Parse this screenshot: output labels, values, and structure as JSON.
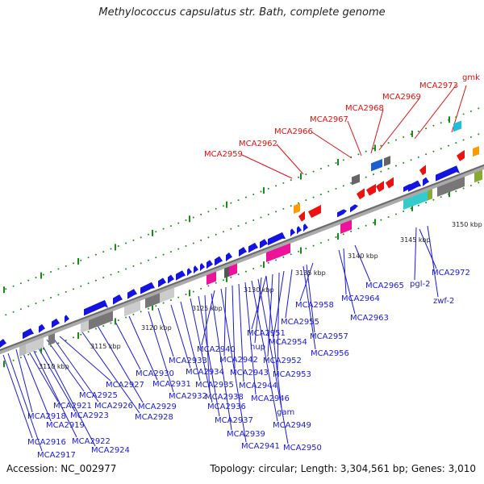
{
  "title": "Methylococcus capsulatus str. Bath, complete genome",
  "footer": {
    "accession": "Accession: NC_002977",
    "summary": "Topology: circular; Length: 3,304,561 bp; Genes: 3,010"
  },
  "colors": {
    "forward_gene": "#1414e0",
    "reverse_gene": "#ee1111",
    "label_blue": "#1a1ad6",
    "label_red": "#e01010",
    "backbone": "#888888",
    "ticks": "#1a8a1a"
  },
  "scale_labels": [
    "3110 kbp",
    "3115 kbp",
    "3120 kbp",
    "3125 kbp",
    "3130 kbp",
    "3135 kbp",
    "3140 kbp",
    "3145 kbp",
    "3150 kbp"
  ],
  "labels_top": [
    "MCA2959",
    "MCA2962",
    "MCA2966",
    "MCA2967",
    "MCA2968",
    "MCA2969",
    "MCA2973",
    "gmk"
  ],
  "labels_bottom": [
    "MCA2916",
    "MCA2917",
    "MCA2918",
    "MCA2919",
    "MCA2921",
    "MCA2922",
    "MCA2923",
    "MCA2924",
    "MCA2925",
    "MCA2926",
    "MCA2927",
    "MCA2928",
    "MCA2929",
    "MCA2930",
    "MCA2931",
    "MCA2932",
    "MCA2933",
    "MCA2934",
    "MCA2935",
    "MCA2936",
    "MCA2937",
    "MCA2938",
    "MCA2939",
    "MCA2940",
    "MCA2941",
    "MCA2942",
    "MCA2943",
    "MCA2944",
    "MCA2946",
    "MCA2949",
    "MCA2950",
    "MCA2951",
    "MCA2952",
    "MCA2953",
    "MCA2954",
    "MCA2955",
    "MCA2956",
    "MCA2957",
    "MCA2958",
    "MCA2963",
    "MCA2964",
    "MCA2965",
    "MCA2972",
    "hup",
    "gam",
    "pgl-2",
    "zwf-2"
  ]
}
